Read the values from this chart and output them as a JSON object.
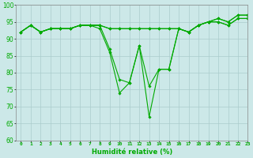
{
  "xlabel": "Humidité relative (%)",
  "background_color": "#cce8e8",
  "grid_color": "#aacccc",
  "line_color": "#00aa00",
  "ylim": [
    60,
    100
  ],
  "xlim": [
    -0.5,
    23
  ],
  "yticks": [
    60,
    65,
    70,
    75,
    80,
    85,
    90,
    95,
    100
  ],
  "xticks": [
    0,
    1,
    2,
    3,
    4,
    5,
    6,
    7,
    8,
    9,
    10,
    11,
    12,
    13,
    14,
    15,
    16,
    17,
    18,
    19,
    20,
    21,
    22,
    23
  ],
  "series": [
    [
      92,
      94,
      92,
      93,
      93,
      93,
      94,
      94,
      94,
      93,
      93,
      93,
      93,
      93,
      93,
      93,
      93,
      92,
      94,
      95,
      96,
      95,
      97,
      97
    ],
    [
      92,
      94,
      92,
      93,
      93,
      93,
      94,
      94,
      94,
      93,
      93,
      93,
      93,
      93,
      93,
      93,
      93,
      92,
      94,
      95,
      95,
      94,
      96,
      96
    ],
    [
      92,
      94,
      92,
      93,
      93,
      93,
      94,
      94,
      94,
      87,
      78,
      77,
      88,
      76,
      81,
      81,
      93,
      92,
      94,
      95,
      95,
      94,
      96,
      96
    ],
    [
      92,
      94,
      92,
      93,
      93,
      93,
      94,
      94,
      93,
      86,
      74,
      77,
      88,
      67,
      81,
      81,
      93,
      92,
      94,
      95,
      96,
      95,
      97,
      97
    ]
  ]
}
